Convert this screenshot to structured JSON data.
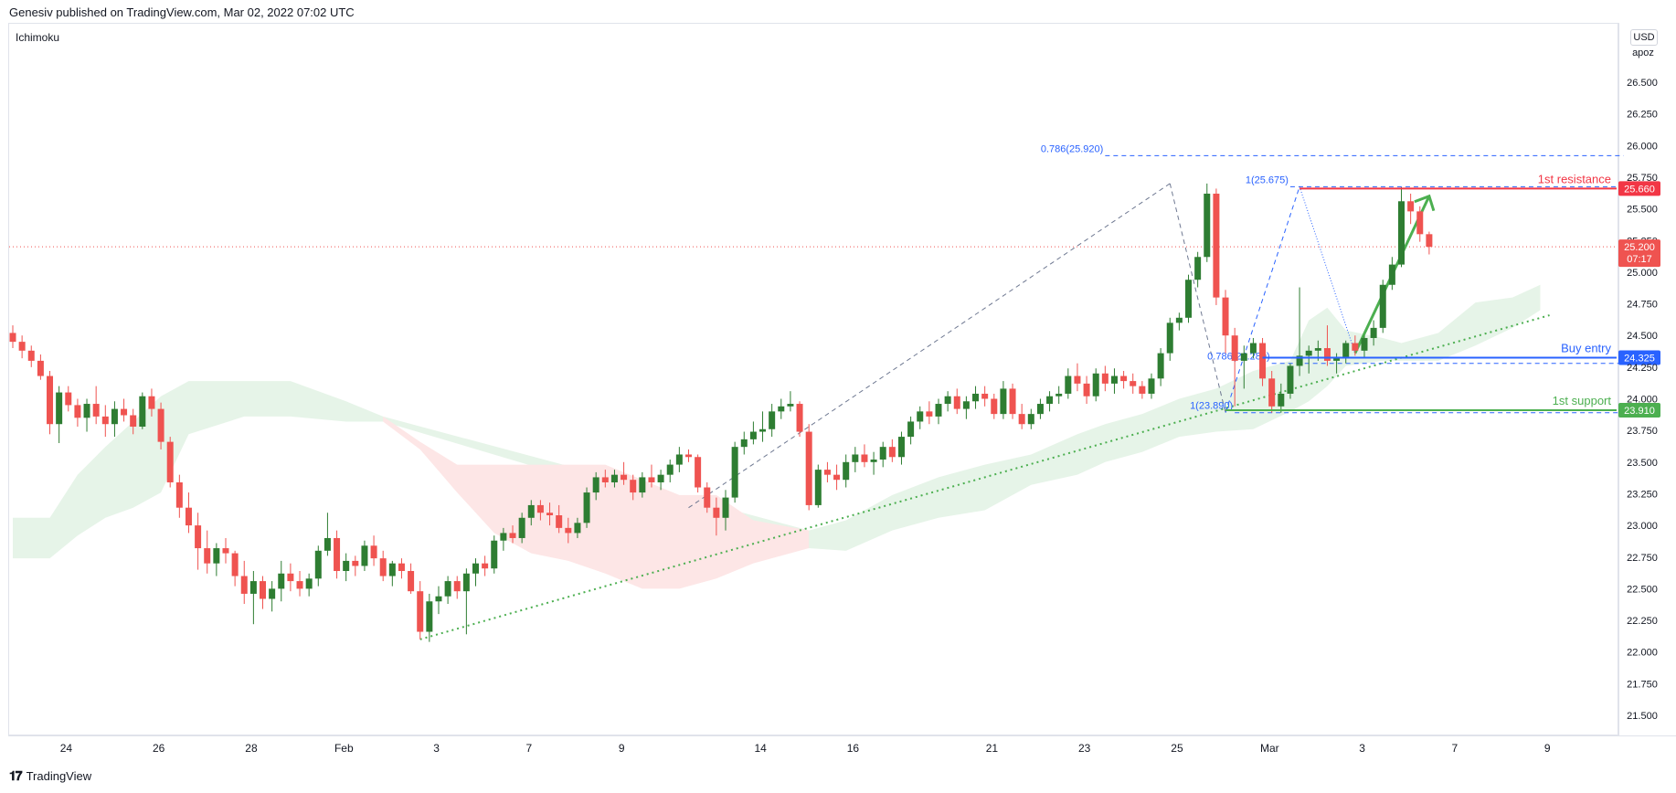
{
  "header": {
    "published": "Genesiv published on TradingView.com, Mar 02, 2022 07:02 UTC"
  },
  "indicator": {
    "name": "Ichimoku"
  },
  "unit": {
    "currency": "USD",
    "scale": "apoz"
  },
  "footer": {
    "brand": "TradingView"
  },
  "colors": {
    "up": "#26a69a",
    "down": "#ef5350",
    "resistance": "#f23645",
    "buy": "#2962ff",
    "support": "#4caf50",
    "cloudGreen": "#e6f4e8",
    "cloudRed": "#fde6e6"
  },
  "chart_data": {
    "type": "candlestick",
    "ylim": [
      21.35,
      26.85
    ],
    "y_ticks": [
      "26.500",
      "26.250",
      "26.000",
      "25.750",
      "25.500",
      "25.250",
      "25.000",
      "24.750",
      "24.500",
      "24.250",
      "24.000",
      "23.750",
      "23.500",
      "23.250",
      "23.000",
      "22.750",
      "22.500",
      "22.250",
      "22.000",
      "21.750",
      "21.500"
    ],
    "x_ticks": [
      {
        "label": "24",
        "i": 3
      },
      {
        "label": "26",
        "i": 13
      },
      {
        "label": "28",
        "i": 23
      },
      {
        "label": "Feb",
        "i": 33
      },
      {
        "label": "3",
        "i": 43
      },
      {
        "label": "7",
        "i": 53
      },
      {
        "label": "9",
        "i": 63
      },
      {
        "label": "14",
        "i": 78
      },
      {
        "label": "16",
        "i": 88
      },
      {
        "label": "21",
        "i": 103
      },
      {
        "label": "23",
        "i": 113
      },
      {
        "label": "25",
        "i": 123
      },
      {
        "label": "Mar",
        "i": 133
      },
      {
        "label": "3",
        "i": 143
      },
      {
        "label": "7",
        "i": 153
      },
      {
        "label": "9",
        "i": 163
      }
    ],
    "candles": [
      [
        24.52,
        24.58,
        24.4,
        24.45
      ],
      [
        24.45,
        24.5,
        24.32,
        24.38
      ],
      [
        24.38,
        24.42,
        24.25,
        24.3
      ],
      [
        24.3,
        24.35,
        24.15,
        24.18
      ],
      [
        24.18,
        24.22,
        23.72,
        23.8
      ],
      [
        23.8,
        24.1,
        23.65,
        24.05
      ],
      [
        24.05,
        24.1,
        23.9,
        23.95
      ],
      [
        23.95,
        24.0,
        23.78,
        23.85
      ],
      [
        23.85,
        24.0,
        23.74,
        23.96
      ],
      [
        23.96,
        24.1,
        23.8,
        23.86
      ],
      [
        23.86,
        23.95,
        23.7,
        23.8
      ],
      [
        23.8,
        23.98,
        23.7,
        23.92
      ],
      [
        23.92,
        24.0,
        23.82,
        23.87
      ],
      [
        23.87,
        23.92,
        23.72,
        23.78
      ],
      [
        23.78,
        24.05,
        23.76,
        24.02
      ],
      [
        24.02,
        24.08,
        23.86,
        23.92
      ],
      [
        23.92,
        23.97,
        23.6,
        23.66
      ],
      [
        23.66,
        23.7,
        23.3,
        23.34
      ],
      [
        23.34,
        23.4,
        23.06,
        23.14
      ],
      [
        23.14,
        23.26,
        22.94,
        23.0
      ],
      [
        23.0,
        23.1,
        22.65,
        22.82
      ],
      [
        22.82,
        22.96,
        22.62,
        22.7
      ],
      [
        22.7,
        22.86,
        22.6,
        22.82
      ],
      [
        22.82,
        22.9,
        22.7,
        22.78
      ],
      [
        22.78,
        22.8,
        22.52,
        22.6
      ],
      [
        22.6,
        22.72,
        22.38,
        22.46
      ],
      [
        22.46,
        22.64,
        22.22,
        22.56
      ],
      [
        22.56,
        22.6,
        22.34,
        22.42
      ],
      [
        22.42,
        22.56,
        22.32,
        22.5
      ],
      [
        22.5,
        22.72,
        22.4,
        22.62
      ],
      [
        22.62,
        22.7,
        22.48,
        22.56
      ],
      [
        22.56,
        22.64,
        22.44,
        22.5
      ],
      [
        22.5,
        22.62,
        22.44,
        22.58
      ],
      [
        22.58,
        22.84,
        22.52,
        22.8
      ],
      [
        22.8,
        23.1,
        22.76,
        22.9
      ],
      [
        22.9,
        22.96,
        22.58,
        22.64
      ],
      [
        22.64,
        22.78,
        22.56,
        22.72
      ],
      [
        22.72,
        22.76,
        22.6,
        22.68
      ],
      [
        22.68,
        22.88,
        22.64,
        22.84
      ],
      [
        22.84,
        22.92,
        22.68,
        22.74
      ],
      [
        22.74,
        22.8,
        22.56,
        22.6
      ],
      [
        22.6,
        22.72,
        22.52,
        22.7
      ],
      [
        22.7,
        22.74,
        22.58,
        22.64
      ],
      [
        22.64,
        22.7,
        22.46,
        22.48
      ],
      [
        22.48,
        22.56,
        22.1,
        22.16
      ],
      [
        22.16,
        22.46,
        22.08,
        22.4
      ],
      [
        22.4,
        22.52,
        22.3,
        22.44
      ],
      [
        22.44,
        22.6,
        22.38,
        22.56
      ],
      [
        22.56,
        22.6,
        22.42,
        22.48
      ],
      [
        22.48,
        22.66,
        22.14,
        22.62
      ],
      [
        22.62,
        22.74,
        22.52,
        22.7
      ],
      [
        22.7,
        22.76,
        22.6,
        22.66
      ],
      [
        22.66,
        22.92,
        22.62,
        22.88
      ],
      [
        22.88,
        22.98,
        22.8,
        22.94
      ],
      [
        22.94,
        23.0,
        22.86,
        22.9
      ],
      [
        22.9,
        23.1,
        22.86,
        23.06
      ],
      [
        23.06,
        23.2,
        23.0,
        23.16
      ],
      [
        23.16,
        23.2,
        23.04,
        23.1
      ],
      [
        23.1,
        23.18,
        23.0,
        23.08
      ],
      [
        23.08,
        23.16,
        22.94,
        22.98
      ],
      [
        22.98,
        23.06,
        22.86,
        22.94
      ],
      [
        22.94,
        23.06,
        22.9,
        23.02
      ],
      [
        23.02,
        23.3,
        22.98,
        23.26
      ],
      [
        23.26,
        23.42,
        23.2,
        23.38
      ],
      [
        23.38,
        23.44,
        23.3,
        23.34
      ],
      [
        23.34,
        23.44,
        23.3,
        23.4
      ],
      [
        23.4,
        23.5,
        23.32,
        23.36
      ],
      [
        23.36,
        23.4,
        23.2,
        23.26
      ],
      [
        23.26,
        23.42,
        23.22,
        23.38
      ],
      [
        23.38,
        23.48,
        23.3,
        23.34
      ],
      [
        23.34,
        23.44,
        23.28,
        23.4
      ],
      [
        23.4,
        23.52,
        23.34,
        23.48
      ],
      [
        23.48,
        23.62,
        23.42,
        23.56
      ],
      [
        23.56,
        23.6,
        23.5,
        23.54
      ],
      [
        23.54,
        23.56,
        23.26,
        23.3
      ],
      [
        23.3,
        23.34,
        23.1,
        23.14
      ],
      [
        23.14,
        23.22,
        22.92,
        23.06
      ],
      [
        23.06,
        23.28,
        22.96,
        23.22
      ],
      [
        23.22,
        23.66,
        23.18,
        23.62
      ],
      [
        23.62,
        23.74,
        23.56,
        23.68
      ],
      [
        23.68,
        23.82,
        23.64,
        23.74
      ],
      [
        23.74,
        23.9,
        23.66,
        23.76
      ],
      [
        23.76,
        23.96,
        23.7,
        23.9
      ],
      [
        23.9,
        24.0,
        23.84,
        23.94
      ],
      [
        23.94,
        24.06,
        23.9,
        23.96
      ],
      [
        23.96,
        23.98,
        23.7,
        23.74
      ],
      [
        23.74,
        23.8,
        23.12,
        23.16
      ],
      [
        23.16,
        23.48,
        23.14,
        23.44
      ],
      [
        23.44,
        23.5,
        23.34,
        23.4
      ],
      [
        23.4,
        23.48,
        23.28,
        23.36
      ],
      [
        23.36,
        23.56,
        23.3,
        23.5
      ],
      [
        23.5,
        23.62,
        23.42,
        23.56
      ],
      [
        23.56,
        23.64,
        23.46,
        23.5
      ],
      [
        23.5,
        23.58,
        23.4,
        23.52
      ],
      [
        23.52,
        23.66,
        23.46,
        23.62
      ],
      [
        23.62,
        23.68,
        23.5,
        23.54
      ],
      [
        23.54,
        23.74,
        23.48,
        23.7
      ],
      [
        23.7,
        23.86,
        23.64,
        23.82
      ],
      [
        23.82,
        23.94,
        23.76,
        23.9
      ],
      [
        23.9,
        23.98,
        23.8,
        23.86
      ],
      [
        23.86,
        24.0,
        23.8,
        23.96
      ],
      [
        23.96,
        24.06,
        23.9,
        24.02
      ],
      [
        24.02,
        24.08,
        23.88,
        23.92
      ],
      [
        23.92,
        24.02,
        23.84,
        23.98
      ],
      [
        23.98,
        24.1,
        23.92,
        24.04
      ],
      [
        24.04,
        24.1,
        23.94,
        24.0
      ],
      [
        24.0,
        24.04,
        23.84,
        23.88
      ],
      [
        23.88,
        24.14,
        23.84,
        24.08
      ],
      [
        24.08,
        24.12,
        23.84,
        23.88
      ],
      [
        23.88,
        23.96,
        23.76,
        23.8
      ],
      [
        23.8,
        23.92,
        23.76,
        23.88
      ],
      [
        23.88,
        24.0,
        23.84,
        23.96
      ],
      [
        23.96,
        24.06,
        23.9,
        24.02
      ],
      [
        24.02,
        24.1,
        23.96,
        24.04
      ],
      [
        24.04,
        24.24,
        24.0,
        24.18
      ],
      [
        24.18,
        24.28,
        24.06,
        24.12
      ],
      [
        24.12,
        24.18,
        23.96,
        24.02
      ],
      [
        24.02,
        24.24,
        23.98,
        24.2
      ],
      [
        24.2,
        24.26,
        24.06,
        24.12
      ],
      [
        24.12,
        24.24,
        24.04,
        24.18
      ],
      [
        24.18,
        24.22,
        24.08,
        24.14
      ],
      [
        24.14,
        24.2,
        24.04,
        24.1
      ],
      [
        24.1,
        24.14,
        24.0,
        24.04
      ],
      [
        24.04,
        24.2,
        24.0,
        24.16
      ],
      [
        24.16,
        24.4,
        24.1,
        24.36
      ],
      [
        24.36,
        24.64,
        24.3,
        24.6
      ],
      [
        24.6,
        24.68,
        24.54,
        24.64
      ],
      [
        24.64,
        24.98,
        24.6,
        24.94
      ],
      [
        24.94,
        25.16,
        24.88,
        25.12
      ],
      [
        25.12,
        25.7,
        25.08,
        25.62
      ],
      [
        25.62,
        25.66,
        24.74,
        24.8
      ],
      [
        24.8,
        24.86,
        24.36,
        24.5
      ],
      [
        24.5,
        24.56,
        23.94,
        24.3
      ],
      [
        24.3,
        24.42,
        24.08,
        24.36
      ],
      [
        24.36,
        24.48,
        24.32,
        24.44
      ],
      [
        24.44,
        24.48,
        24.1,
        24.16
      ],
      [
        24.16,
        24.22,
        23.89,
        23.94
      ],
      [
        23.94,
        24.12,
        23.89,
        24.04
      ],
      [
        24.04,
        24.28,
        24.0,
        24.26
      ],
      [
        24.26,
        24.88,
        24.18,
        24.34
      ],
      [
        24.34,
        24.42,
        24.2,
        24.38
      ],
      [
        24.38,
        24.46,
        24.3,
        24.4
      ],
      [
        24.4,
        24.58,
        24.26,
        24.3
      ],
      [
        24.3,
        24.36,
        24.2,
        24.32
      ],
      [
        24.32,
        24.46,
        24.28,
        24.44
      ],
      [
        24.44,
        24.5,
        24.34,
        24.38
      ],
      [
        24.38,
        24.5,
        24.32,
        24.48
      ],
      [
        24.48,
        24.62,
        24.42,
        24.56
      ],
      [
        24.56,
        24.94,
        24.52,
        24.9
      ],
      [
        24.9,
        25.12,
        24.86,
        25.06
      ],
      [
        25.06,
        25.67,
        25.04,
        25.56
      ],
      [
        25.56,
        25.62,
        25.38,
        25.48
      ],
      [
        25.48,
        25.52,
        25.24,
        25.3
      ],
      [
        25.3,
        25.32,
        25.14,
        25.2
      ]
    ],
    "cloud_green": [
      [
        0,
        23.06,
        22.74
      ],
      [
        4,
        23.06,
        22.74
      ],
      [
        7,
        23.4,
        22.92
      ],
      [
        10,
        23.62,
        23.06
      ],
      [
        13,
        23.82,
        23.14
      ],
      [
        16,
        24.02,
        23.26
      ],
      [
        19,
        24.14,
        23.72
      ],
      [
        25,
        24.14,
        23.86
      ],
      [
        30,
        24.14,
        23.86
      ],
      [
        36,
        23.98,
        23.82
      ],
      [
        40,
        23.86,
        23.82
      ],
      [
        86,
        22.96,
        22.82
      ],
      [
        90,
        23.04,
        22.8
      ],
      [
        95,
        23.24,
        22.96
      ],
      [
        100,
        23.38,
        23.06
      ],
      [
        105,
        23.48,
        23.12
      ],
      [
        110,
        23.56,
        23.32
      ],
      [
        115,
        23.72,
        23.4
      ],
      [
        118,
        23.8,
        23.5
      ],
      [
        122,
        23.88,
        23.58
      ],
      [
        126,
        24.0,
        23.7
      ],
      [
        130,
        24.08,
        23.74
      ],
      [
        134,
        24.22,
        23.76
      ],
      [
        138,
        24.3,
        23.9
      ],
      [
        140,
        24.62,
        23.98
      ],
      [
        142,
        24.72,
        24.1
      ],
      [
        144,
        24.54,
        24.26
      ],
      [
        148,
        24.48,
        24.3
      ],
      [
        150,
        24.44,
        24.3
      ],
      [
        154,
        24.52,
        24.3
      ],
      [
        158,
        24.76,
        24.42
      ],
      [
        162,
        24.8,
        24.56
      ],
      [
        165,
        24.9,
        24.7
      ]
    ],
    "cloud_red": [
      [
        40,
        23.86,
        23.82
      ],
      [
        44,
        23.66,
        23.6
      ],
      [
        48,
        23.48,
        23.26
      ],
      [
        52,
        23.48,
        22.94
      ],
      [
        56,
        23.48,
        22.78
      ],
      [
        60,
        23.48,
        22.72
      ],
      [
        64,
        23.48,
        22.62
      ],
      [
        68,
        23.36,
        22.5
      ],
      [
        72,
        23.24,
        22.5
      ],
      [
        76,
        23.24,
        22.58
      ],
      [
        80,
        23.04,
        22.7
      ],
      [
        86,
        22.96,
        22.82
      ]
    ],
    "trendline_start": [
      44,
      22.1
    ],
    "trendline_end": [
      166,
      24.66
    ],
    "fib_lines": [
      {
        "label": "0.786(25.920)",
        "value": 25.92,
        "from": 118,
        "to": 174
      },
      {
        "label": "1(25.675)",
        "value": 25.675,
        "from": 138,
        "to": 174
      },
      {
        "label": "0.786(24.280)",
        "value": 24.28,
        "from": 136,
        "to": 174
      },
      {
        "label": "1(23.890)",
        "value": 23.89,
        "from": 132,
        "to": 174
      }
    ],
    "levels": [
      {
        "name": "1st resistance",
        "value": 25.66,
        "price": "25.660",
        "from": 139,
        "color": "#f23645"
      },
      {
        "name": "Buy entry",
        "value": 24.325,
        "price": "24.325",
        "from": 135,
        "color": "#2962ff"
      },
      {
        "name": "1st support",
        "value": 23.91,
        "price": "23.910",
        "from": 131,
        "color": "#4caf50"
      }
    ],
    "current_price": {
      "price": "25.200",
      "countdown": "07:17",
      "value": 25.2
    }
  }
}
